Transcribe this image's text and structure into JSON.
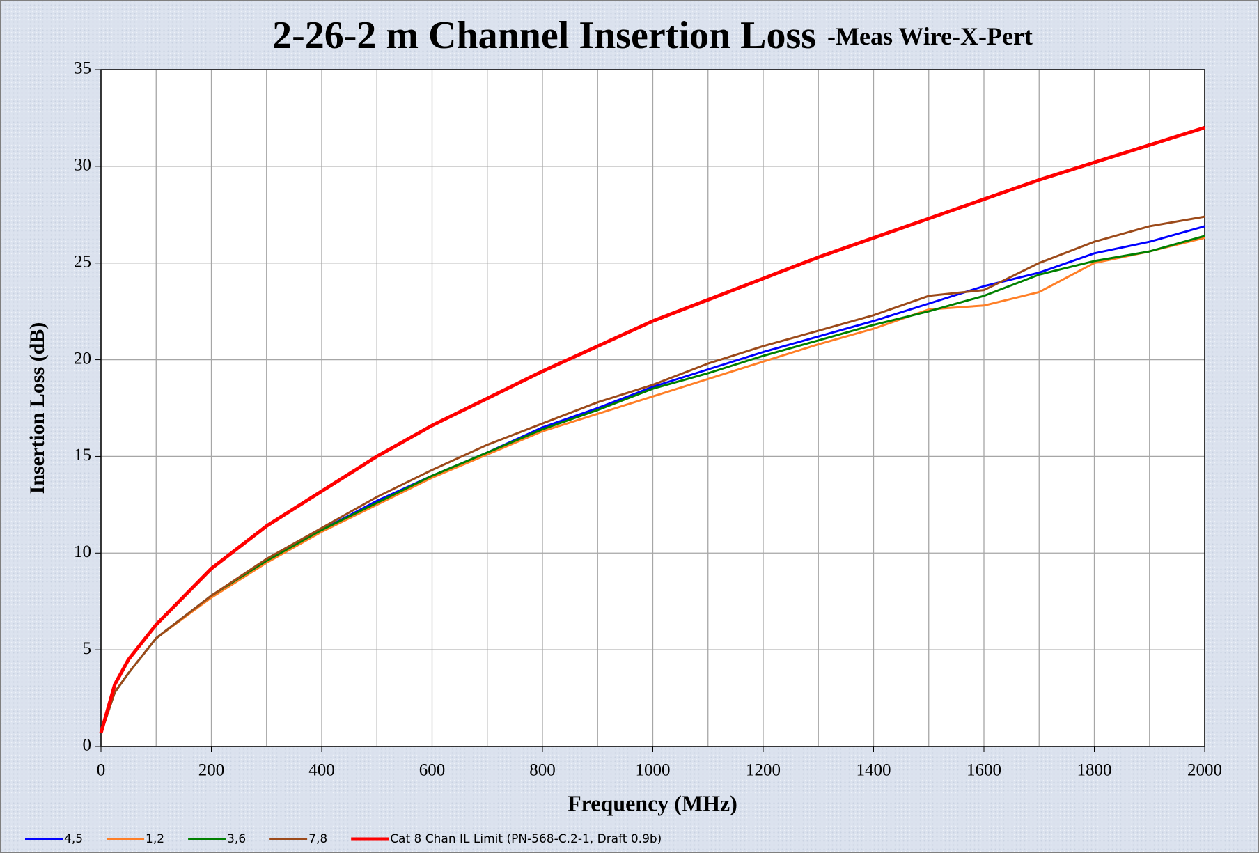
{
  "chart_data": {
    "type": "line",
    "title": "2-26-2 m Channel Insertion Loss",
    "subtitle": "-Meas Wire-X-Pert",
    "x_label": "Frequency (MHz)",
    "y_label": "Insertion Loss (dB)",
    "x": [
      0,
      25,
      50,
      100,
      200,
      300,
      400,
      500,
      600,
      700,
      800,
      900,
      1000,
      1100,
      1200,
      1300,
      1400,
      1500,
      1600,
      1700,
      1800,
      1900,
      2000
    ],
    "series": [
      {
        "name": "4,5",
        "color": "#0000ff",
        "values": [
          0.7,
          2.8,
          3.8,
          5.6,
          7.8,
          9.6,
          11.2,
          12.7,
          14.0,
          15.2,
          16.5,
          17.5,
          18.6,
          19.5,
          20.4,
          21.2,
          22.0,
          22.9,
          23.8,
          24.5,
          25.5,
          26.1,
          26.9
        ]
      },
      {
        "name": "1,2",
        "color": "#ff7f27",
        "values": [
          0.7,
          2.8,
          3.8,
          5.6,
          7.7,
          9.5,
          11.1,
          12.5,
          13.9,
          15.1,
          16.3,
          17.2,
          18.1,
          19.0,
          19.9,
          20.8,
          21.6,
          22.6,
          22.8,
          23.5,
          25.0,
          25.6,
          26.3
        ]
      },
      {
        "name": "3,6",
        "color": "#008000",
        "values": [
          0.7,
          2.8,
          3.8,
          5.6,
          7.8,
          9.6,
          11.2,
          12.6,
          14.0,
          15.2,
          16.4,
          17.4,
          18.5,
          19.3,
          20.2,
          21.0,
          21.8,
          22.5,
          23.3,
          24.4,
          25.1,
          25.6,
          26.4
        ]
      },
      {
        "name": "7,8",
        "color": "#9c4a1a",
        "values": [
          0.7,
          2.8,
          3.8,
          5.6,
          7.8,
          9.7,
          11.3,
          12.9,
          14.3,
          15.6,
          16.7,
          17.8,
          18.7,
          19.8,
          20.7,
          21.5,
          22.3,
          23.3,
          23.6,
          25.0,
          26.1,
          26.9,
          27.4
        ]
      },
      {
        "name": "Cat 8 Chan IL Limit (PN-568-C.2-1, Draft 0.9b)",
        "color": "#ff0000",
        "values": [
          0.7,
          3.2,
          4.5,
          6.3,
          9.2,
          11.4,
          13.2,
          15.0,
          16.6,
          18.0,
          19.4,
          20.7,
          22.0,
          23.1,
          24.2,
          25.3,
          26.3,
          27.3,
          28.3,
          29.3,
          30.2,
          31.1,
          32.0
        ]
      }
    ],
    "xlim": [
      0,
      2000
    ],
    "ylim": [
      0,
      35
    ],
    "xticks": [
      0,
      200,
      400,
      600,
      800,
      1000,
      1200,
      1400,
      1600,
      1800,
      2000
    ],
    "x_minor_gridlines": [
      100,
      300,
      500,
      700,
      900,
      1100,
      1300,
      1500,
      1700,
      1900
    ],
    "yticks": [
      0,
      5,
      10,
      15,
      20,
      25,
      30,
      35
    ],
    "grid": true,
    "legend": "bottom"
  }
}
